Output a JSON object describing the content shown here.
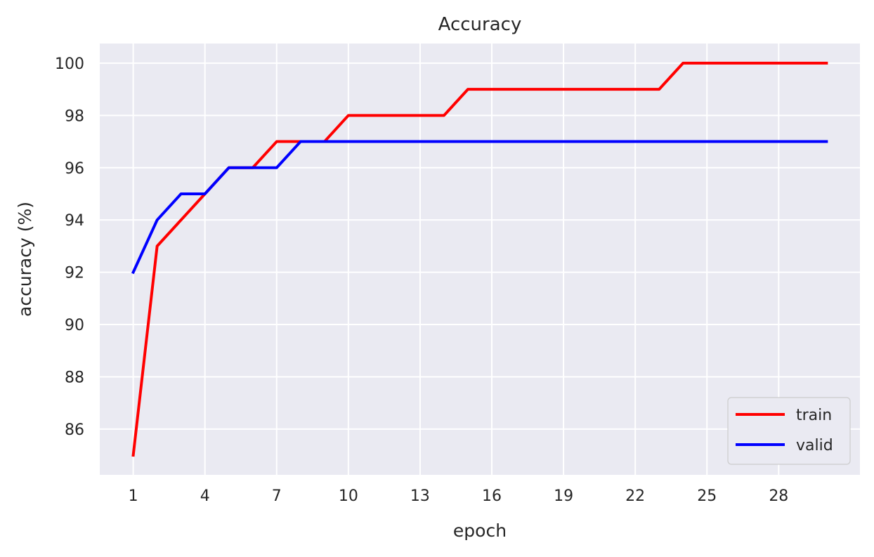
{
  "chart_data": {
    "type": "line",
    "title": "Accuracy",
    "xlabel": "epoch",
    "ylabel": "accuracy (%)",
    "x": [
      1,
      2,
      3,
      4,
      5,
      6,
      7,
      8,
      9,
      10,
      11,
      12,
      13,
      14,
      15,
      16,
      17,
      18,
      19,
      20,
      21,
      22,
      23,
      24,
      25,
      26,
      27,
      28,
      29,
      30
    ],
    "xticks": [
      1,
      4,
      7,
      10,
      13,
      16,
      19,
      22,
      25,
      28
    ],
    "yticks": [
      86,
      88,
      90,
      92,
      94,
      96,
      98,
      100
    ],
    "xlim": [
      -0.4,
      31.4
    ],
    "ylim": [
      84.25,
      100.75
    ],
    "grid": true,
    "legend_position": "lower-right",
    "series": [
      {
        "name": "train",
        "color": "#ff0000",
        "values": [
          85,
          93,
          94,
          95,
          96,
          96,
          97,
          97,
          97,
          98,
          98,
          98,
          98,
          98,
          99,
          99,
          99,
          99,
          99,
          99,
          99,
          99,
          99,
          100,
          100,
          100,
          100,
          100,
          100,
          100
        ]
      },
      {
        "name": "valid",
        "color": "#0000ff",
        "values": [
          92,
          94,
          95,
          95,
          96,
          96,
          96,
          97,
          97,
          97,
          97,
          97,
          97,
          97,
          97,
          97,
          97,
          97,
          97,
          97,
          97,
          97,
          97,
          97,
          97,
          97,
          97,
          97,
          97,
          97
        ]
      }
    ]
  }
}
